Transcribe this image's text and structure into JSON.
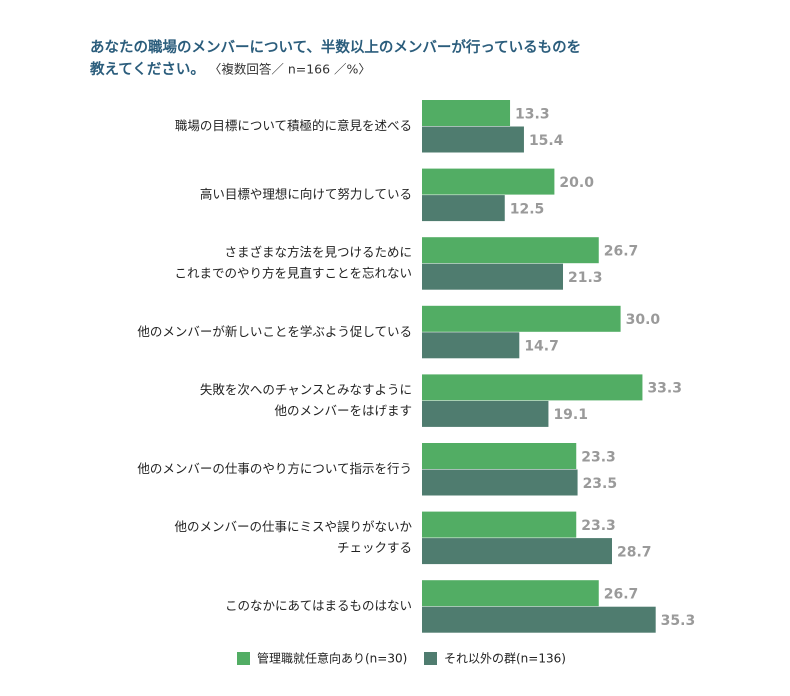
{
  "chart_data": {
    "type": "bar",
    "orientation": "horizontal",
    "title": [
      "あなたの職場のメンバーについて、半数以上のメンバーが行っているものを",
      "教えてください。"
    ],
    "subtitle": "〈複数回答／ n=166 ／%〉",
    "categories": [
      [
        "職場の目標について積極的に意見を述べる"
      ],
      [
        "高い目標や理想に向けて努力している"
      ],
      [
        "さまざまな方法を見つけるために",
        "これまでのやり方を見直すことを忘れない"
      ],
      [
        "他のメンバーが新しいことを学ぶよう促している"
      ],
      [
        "失敗を次へのチャンスとみなすように",
        "他のメンバーをはげます"
      ],
      [
        "他のメンバーの仕事のやり方について指示を行う"
      ],
      [
        "他のメンバーの仕事にミスや誤りがないか",
        "チェックする"
      ],
      [
        "このなかにあてはまるものはない"
      ]
    ],
    "series": [
      {
        "name": "管理職就任意向あり(n=30)",
        "color": "#52ad64",
        "values": [
          13.3,
          20.0,
          26.7,
          30.0,
          33.3,
          23.3,
          23.3,
          26.7
        ],
        "value_labels": [
          "13.3",
          "20.0",
          "26.7",
          "30.0",
          "33.3",
          "23.3",
          "23.3",
          "26.7"
        ]
      },
      {
        "name": "それ以外の群(n=136)",
        "color": "#4f7c6f",
        "values": [
          15.4,
          12.5,
          21.3,
          14.7,
          19.1,
          23.5,
          28.7,
          35.3
        ],
        "value_labels": [
          "15.4",
          "12.5",
          "21.3",
          "14.7",
          "19.1",
          "23.5",
          "28.7",
          "35.3"
        ]
      }
    ]
  }
}
